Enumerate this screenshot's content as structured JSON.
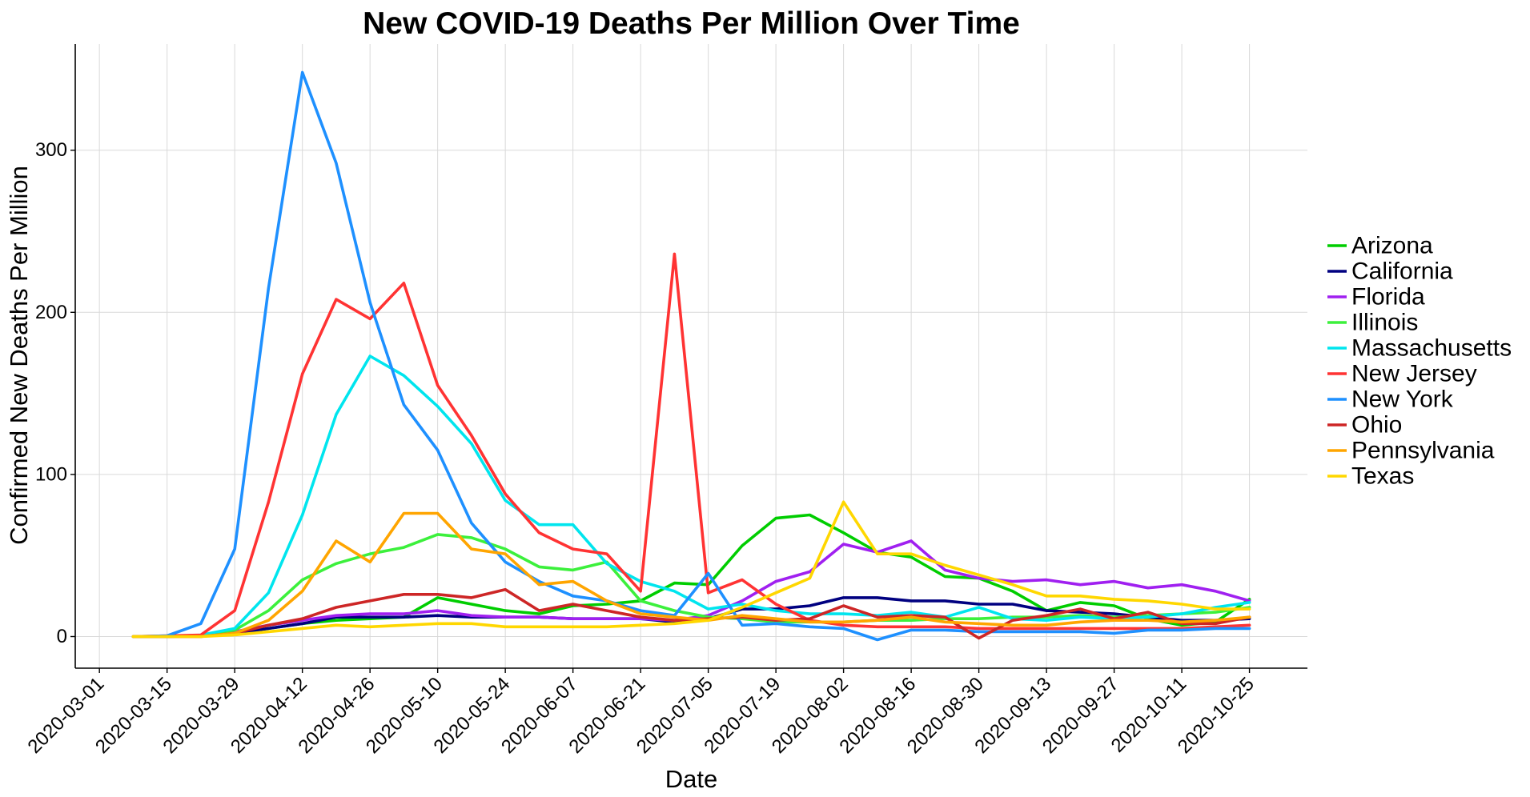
{
  "chart_data": {
    "type": "line",
    "title": "New COVID-19 Deaths Per Million Over Time",
    "xlabel": "Date",
    "ylabel": "Confirmed New Deaths Per Million",
    "xlim": [
      "2020-02-25",
      "2020-11-06"
    ],
    "ylim": [
      -19.5,
      365.5
    ],
    "grid": true,
    "legend_position": "right",
    "x_ticks": [
      "2020-03-01",
      "2020-03-15",
      "2020-03-29",
      "2020-04-12",
      "2020-04-26",
      "2020-05-10",
      "2020-05-24",
      "2020-06-07",
      "2020-06-21",
      "2020-07-05",
      "2020-07-19",
      "2020-08-02",
      "2020-08-16",
      "2020-08-30",
      "2020-09-13",
      "2020-09-27",
      "2020-10-11",
      "2020-10-25"
    ],
    "y_ticks": [
      0,
      100,
      200,
      300
    ],
    "x": [
      "2020-03-08",
      "2020-03-15",
      "2020-03-22",
      "2020-03-29",
      "2020-04-05",
      "2020-04-12",
      "2020-04-19",
      "2020-04-26",
      "2020-05-03",
      "2020-05-10",
      "2020-05-17",
      "2020-05-24",
      "2020-05-31",
      "2020-06-07",
      "2020-06-14",
      "2020-06-21",
      "2020-06-28",
      "2020-07-05",
      "2020-07-12",
      "2020-07-19",
      "2020-07-26",
      "2020-08-02",
      "2020-08-09",
      "2020-08-16",
      "2020-08-23",
      "2020-08-30",
      "2020-09-06",
      "2020-09-13",
      "2020-09-20",
      "2020-09-27",
      "2020-10-04",
      "2020-10-11",
      "2020-10-18",
      "2020-10-25"
    ],
    "series": [
      {
        "name": "Arizona",
        "color": "#00CD00",
        "values": [
          0,
          0,
          0.5,
          2,
          5,
          8,
          10,
          11,
          12,
          24,
          20,
          16,
          14,
          19,
          20,
          22,
          33,
          32,
          56,
          73,
          75,
          64,
          52,
          49,
          37,
          36,
          28,
          16,
          21,
          19,
          11,
          7,
          9,
          23
        ]
      },
      {
        "name": "California",
        "color": "#000080",
        "values": [
          0,
          0,
          0.5,
          2,
          5,
          8,
          12,
          12,
          12,
          13,
          12,
          12,
          12,
          11,
          11,
          11,
          9,
          11,
          17,
          17,
          19,
          24,
          24,
          22,
          22,
          20,
          20,
          16,
          15,
          14,
          12,
          10,
          10,
          11
        ]
      },
      {
        "name": "Florida",
        "color": "#A020F0",
        "values": [
          0,
          0,
          0.5,
          3,
          7,
          10,
          13,
          14,
          14,
          16,
          13,
          12,
          12,
          11,
          11,
          11,
          10,
          13,
          22,
          34,
          40,
          57,
          52,
          59,
          41,
          36,
          34,
          35,
          32,
          34,
          30,
          32,
          28,
          22
        ]
      },
      {
        "name": "Illinois",
        "color": "#3CF03C",
        "values": [
          0,
          0,
          0.5,
          4,
          16,
          35,
          45,
          51,
          55,
          63,
          61,
          54,
          43,
          41,
          46,
          22,
          16,
          12,
          11,
          9,
          9,
          9,
          10,
          10,
          11,
          11,
          12,
          12,
          13,
          12,
          13,
          14,
          15,
          18
        ]
      },
      {
        "name": "Massachusetts",
        "color": "#00E5EE",
        "values": [
          0,
          0,
          1,
          5,
          27,
          75,
          137,
          173,
          161,
          142,
          119,
          84,
          69,
          69,
          45,
          34,
          28,
          17,
          20,
          16,
          14,
          14,
          13,
          15,
          12,
          18,
          11,
          10,
          12,
          11,
          12,
          14,
          18,
          21
        ]
      },
      {
        "name": "New Jersey",
        "color": "#FF3333",
        "values": [
          0,
          0.5,
          1,
          16,
          83,
          162,
          208,
          196,
          218,
          155,
          124,
          88,
          64,
          54,
          51,
          28,
          236,
          27,
          35,
          20,
          10,
          7,
          6,
          6,
          6,
          5,
          5,
          5,
          5,
          5,
          5,
          5,
          6,
          7
        ]
      },
      {
        "name": "New York",
        "color": "#1E90FF",
        "values": [
          0,
          0.5,
          8,
          54,
          215,
          348,
          292,
          206,
          143,
          115,
          70,
          46,
          34,
          25,
          22,
          16,
          13,
          39,
          7,
          8,
          6,
          5,
          -2,
          4,
          4,
          3,
          3,
          3,
          3,
          2,
          4,
          4,
          5,
          5
        ]
      },
      {
        "name": "Ohio",
        "color": "#CD2626",
        "values": [
          0,
          0,
          0,
          2,
          7,
          11,
          18,
          22,
          26,
          26,
          24,
          29,
          16,
          20,
          16,
          12,
          10,
          11,
          12,
          10,
          11,
          19,
          12,
          13,
          12,
          -1,
          10,
          13,
          17,
          11,
          15,
          8,
          8,
          12
        ]
      },
      {
        "name": "Pennsylvania",
        "color": "#FFA500",
        "values": [
          0,
          0,
          0,
          2,
          10,
          28,
          59,
          46,
          76,
          76,
          54,
          51,
          32,
          34,
          22,
          14,
          12,
          10,
          13,
          11,
          9,
          9,
          10,
          12,
          9,
          8,
          7,
          7,
          9,
          10,
          10,
          9,
          10,
          12
        ]
      },
      {
        "name": "Texas",
        "color": "#FFD700",
        "values": [
          0,
          0,
          0,
          1,
          3,
          5,
          7,
          6,
          7,
          8,
          8,
          6,
          6,
          6,
          6,
          7,
          8,
          10,
          18,
          27,
          36,
          83,
          51,
          51,
          44,
          38,
          32,
          25,
          25,
          23,
          22,
          20,
          17,
          17
        ]
      }
    ]
  }
}
